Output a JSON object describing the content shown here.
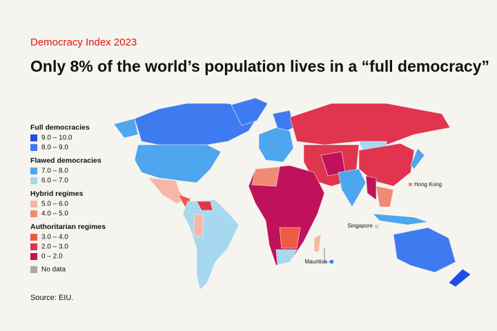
{
  "header": {
    "kicker": "Democracy Index 2023",
    "title": "Only 8% of the world’s population lives in a “full democracy”"
  },
  "legend": {
    "groups": [
      {
        "title": "Full democracies",
        "items": [
          {
            "label": "9.0 – 10.0",
            "color": "#1f4ee6"
          },
          {
            "label": "8.0 – 9.0",
            "color": "#3f7bf0"
          }
        ]
      },
      {
        "title": "Flawed democracies",
        "items": [
          {
            "label": "7.0 – 8.0",
            "color": "#4da6ee"
          },
          {
            "label": "6.0 – 7.0",
            "color": "#a6d8f0"
          }
        ]
      },
      {
        "title": "Hybrid regimes",
        "items": [
          {
            "label": "5.0 – 6.0",
            "color": "#f5b8a8"
          },
          {
            "label": "4.0 – 5.0",
            "color": "#f08a74"
          }
        ]
      },
      {
        "title": "Authoritarian regimes",
        "items": [
          {
            "label": "3.0 – 4.0",
            "color": "#ee5a45"
          },
          {
            "label": "2.0 – 3.0",
            "color": "#e0344f"
          },
          {
            "label": "0 – 2.0",
            "color": "#c0125a"
          }
        ]
      }
    ],
    "no_data": {
      "label": "No data",
      "color": "#a8a8a8"
    }
  },
  "callouts": [
    "Hong Kong",
    "Singapore",
    "Mauritius"
  ],
  "source": "Source: EIU."
}
